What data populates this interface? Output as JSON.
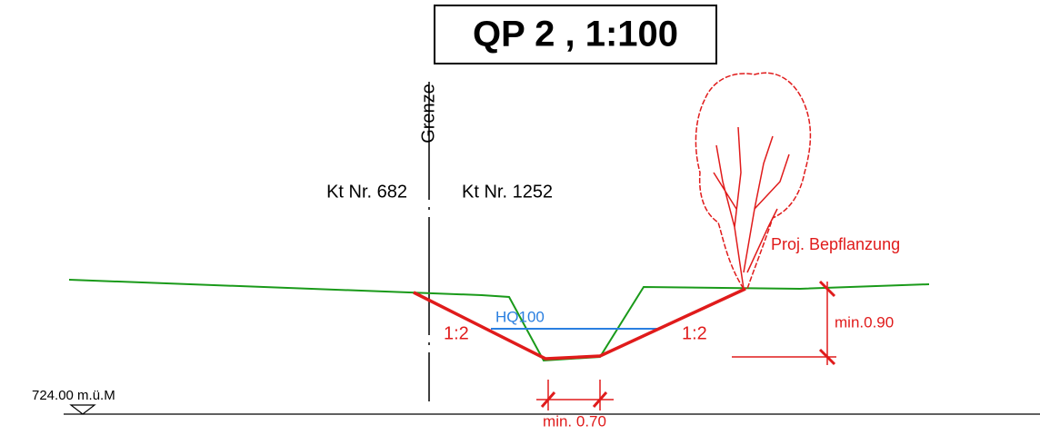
{
  "title": "QP 2 , 1:100",
  "labels": {
    "border": "Grenze",
    "parcel_left": "Kt Nr. 682",
    "parcel_right": "Kt Nr. 1252",
    "planting": "Proj. Bepflanzung",
    "flood_level": "HQ100",
    "slope_left": "1:2",
    "slope_right": "1:2",
    "min_depth": "min.0.90",
    "min_width": "min. 0.70",
    "reference_height": "724.00 m.ü.M"
  }
}
